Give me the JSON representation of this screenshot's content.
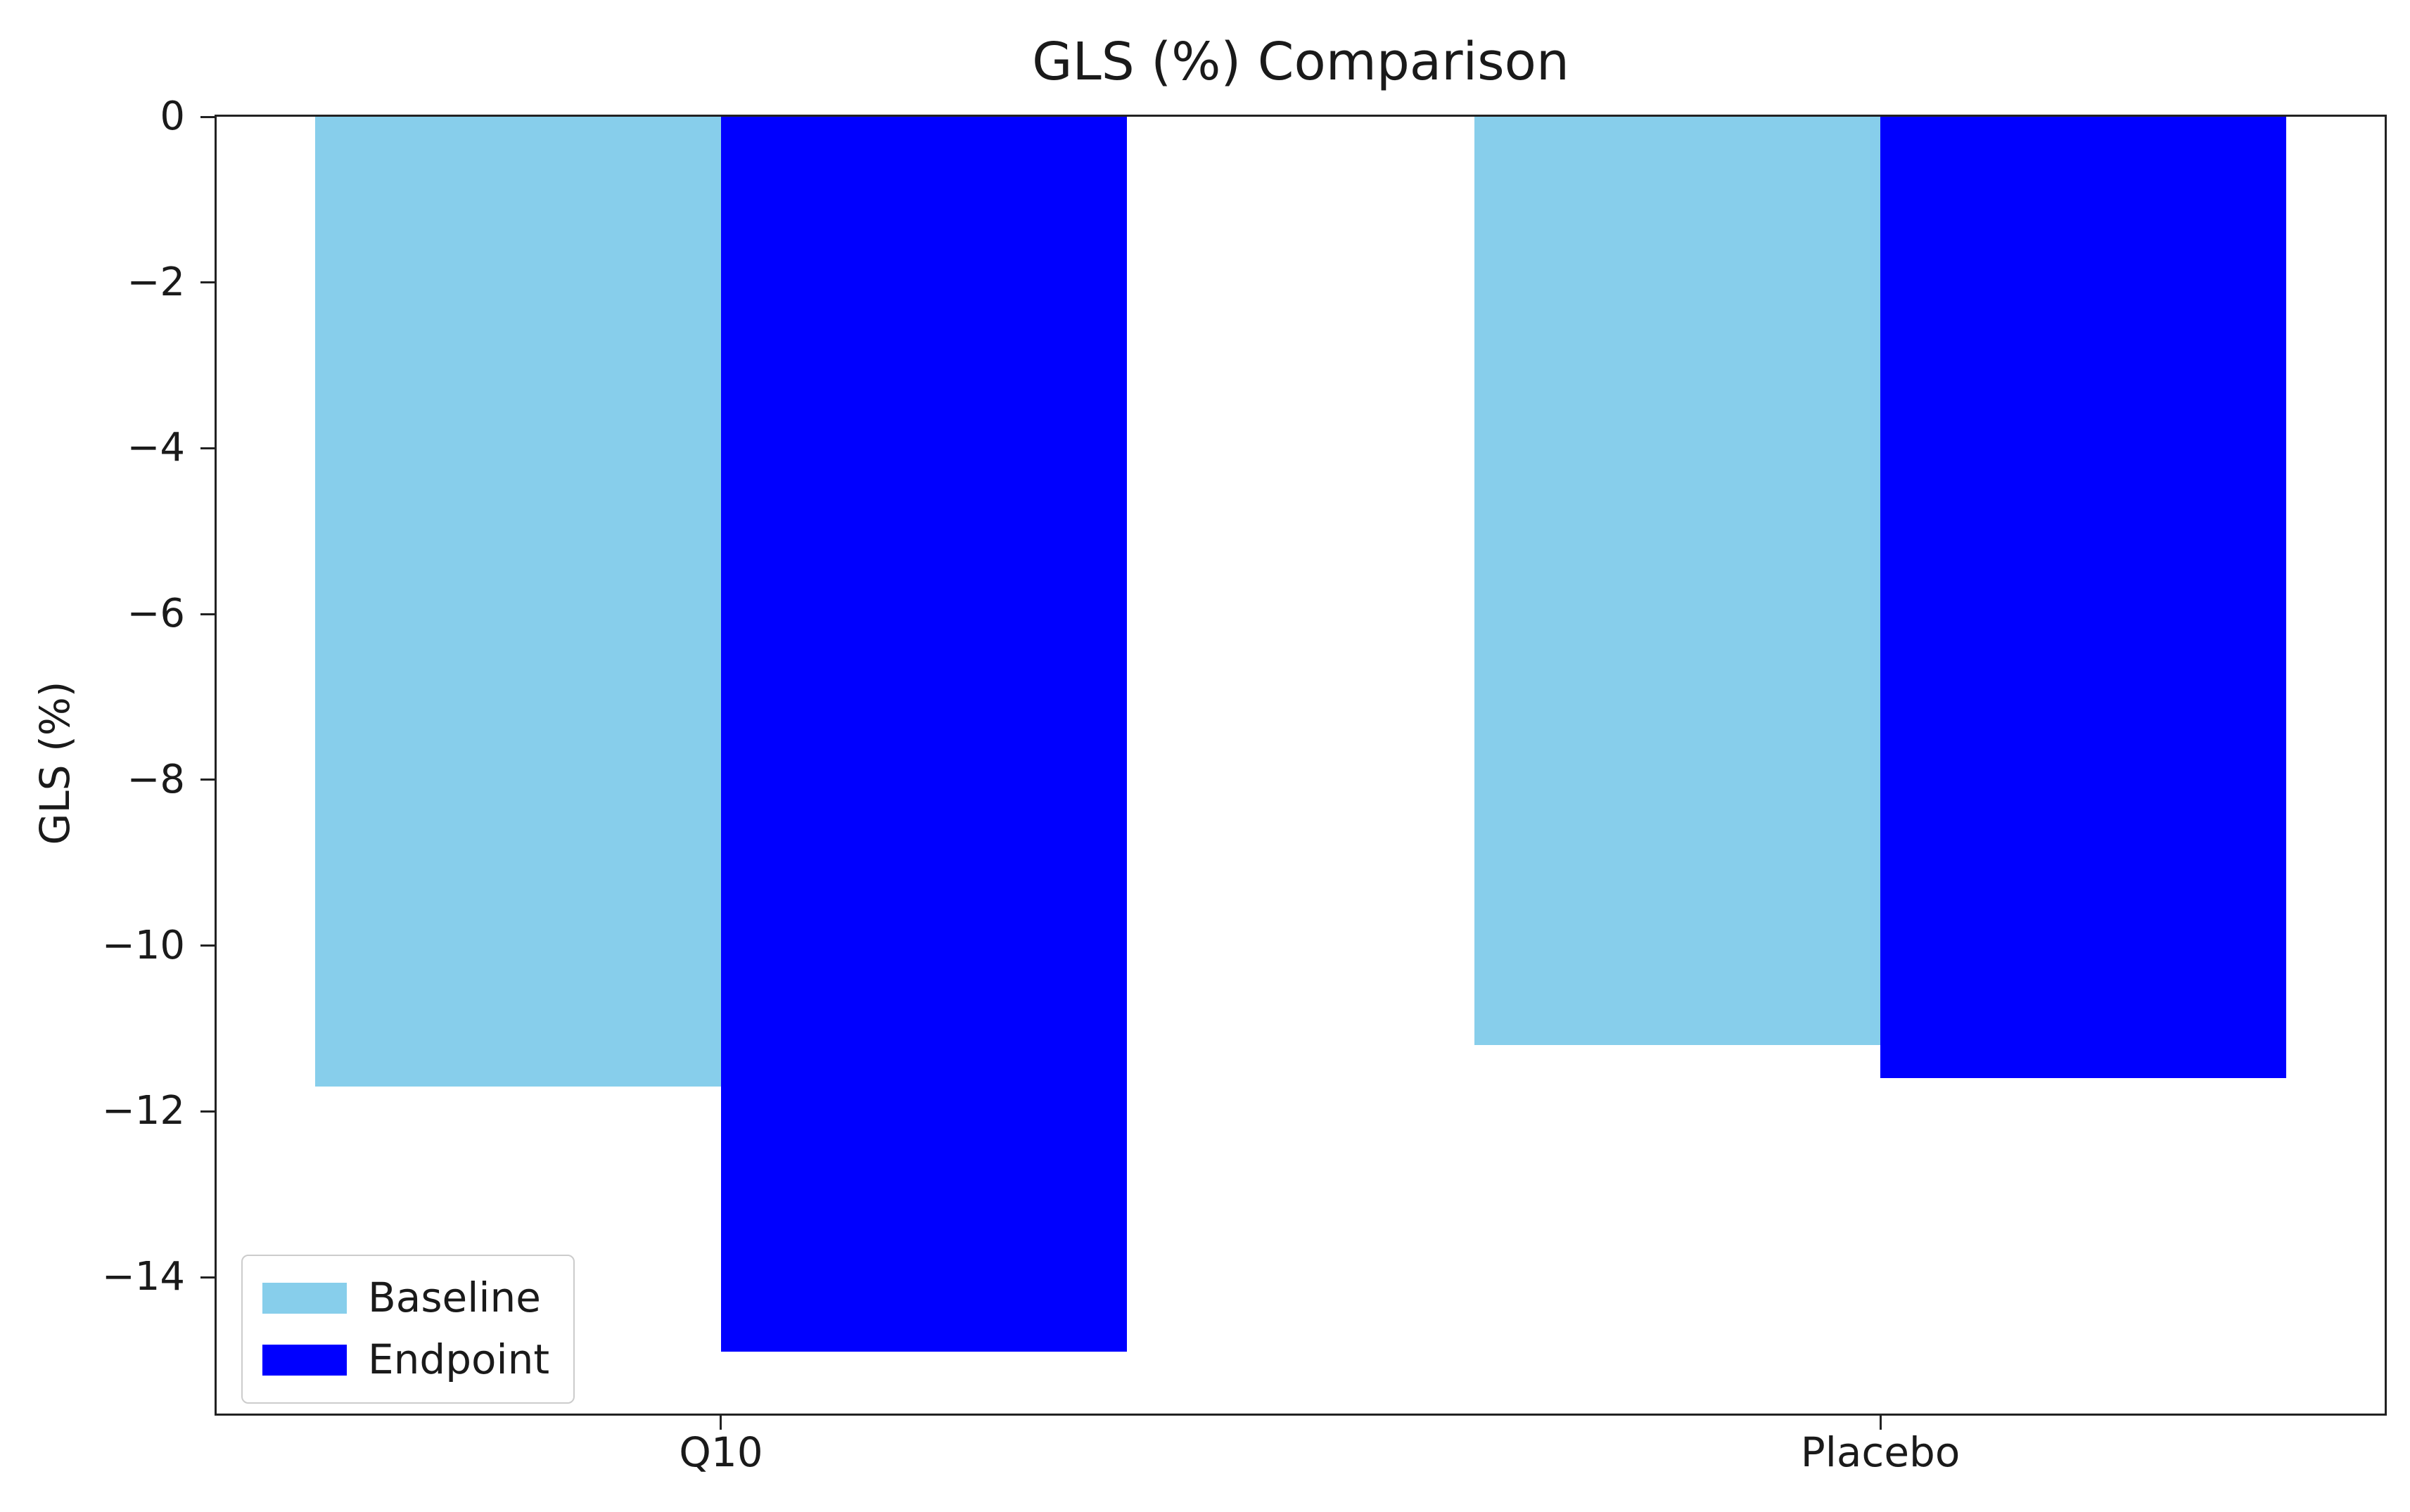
{
  "chart_data": {
    "type": "bar",
    "title": "GLS (%) Comparison",
    "ylabel": "GLS (%)",
    "xlabel": "",
    "categories": [
      "Q10",
      "Placebo"
    ],
    "series": [
      {
        "name": "Baseline",
        "color": "#87CEEB",
        "values": [
          -11.7,
          -11.2
        ]
      },
      {
        "name": "Endpoint",
        "color": "#0000FF",
        "values": [
          -14.9,
          -11.6
        ]
      }
    ],
    "ylim": [
      -15.645,
      0
    ],
    "yticks": [
      0,
      -2,
      -4,
      -6,
      -8,
      -10,
      -12,
      -14
    ],
    "xlim": [
      -0.435,
      1.435
    ],
    "x_centers": [
      0,
      1
    ],
    "bar_width": 0.35,
    "series_offsets": [
      -0.175,
      0.175
    ],
    "grid": false,
    "legend_position": "lower left",
    "colors": {
      "baseline": "#87CEEB",
      "endpoint": "#0000FF",
      "text": "#1a1a1a",
      "spine": "#222222",
      "legend_border": "#cccccc",
      "background": "#ffffff"
    }
  }
}
